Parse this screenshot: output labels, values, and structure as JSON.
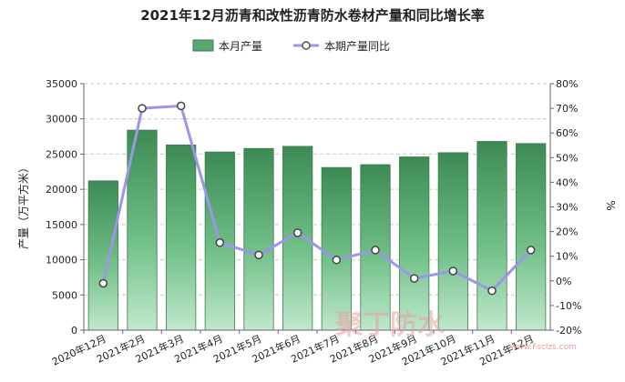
{
  "chart_data": {
    "type": "bar",
    "title": "2021年12月沥青和改性沥青防水卷材产量和同比增长率",
    "categories": [
      "2020年12月",
      "2021年2月",
      "2021年3月",
      "2021年4月",
      "2021年5月",
      "2021年6月",
      "2021年7月",
      "2021年8月",
      "2021年9月",
      "2021年10月",
      "2021年11月",
      "2021年12月"
    ],
    "series": [
      {
        "name": "本月产量",
        "type": "bar",
        "axis": "left",
        "color": "#5aa870",
        "values": [
          21200,
          28400,
          26300,
          25300,
          25800,
          26100,
          23100,
          23500,
          24600,
          25200,
          26800,
          26500
        ]
      },
      {
        "name": "本期产量同比",
        "type": "line",
        "axis": "right",
        "color": "#9b96e8",
        "values": [
          -1,
          70,
          71,
          15.5,
          10.5,
          19.5,
          8.5,
          12.5,
          1,
          4,
          -4,
          12.5
        ]
      }
    ],
    "ylabel": "产量（万平方米）",
    "y2label": "%",
    "ylim": [
      0,
      35000
    ],
    "y2lim": [
      -20,
      80
    ],
    "yticks": [
      "0",
      "5000",
      "10000",
      "15000",
      "20000",
      "25000",
      "30000",
      "35000"
    ],
    "y2ticks": [
      "-20%",
      "-10%",
      "0%",
      "10%",
      "20%",
      "30%",
      "40%",
      "50%",
      "60%",
      "70%",
      "80%"
    ],
    "grid": true,
    "legend_position": "top-center"
  },
  "watermark": {
    "text": "聚丁防水",
    "url": "www.Fsclzs.com"
  }
}
